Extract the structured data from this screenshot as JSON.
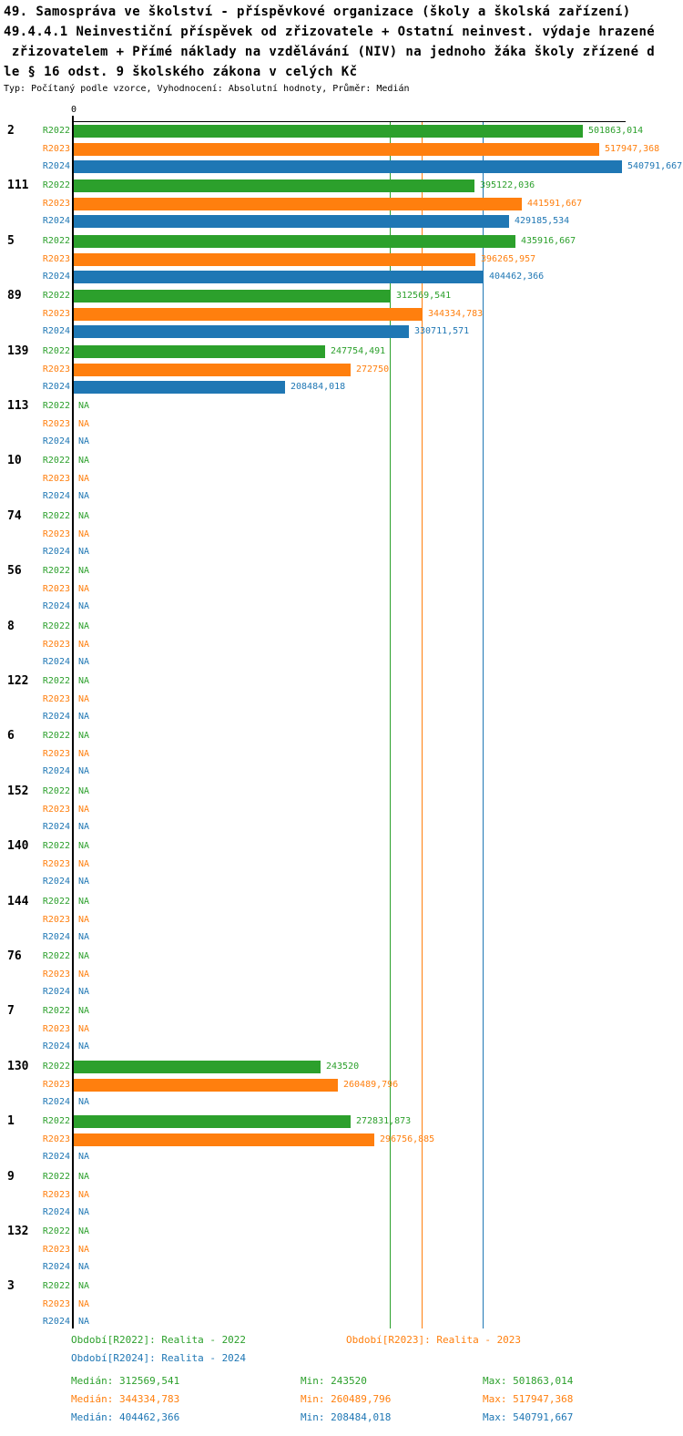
{
  "header": {
    "title_lines": [
      "49. Samospráva ve školství - příspěvkové organizace (školy a školská zařízení)",
      "49.4.4.1 Neinvestiční příspěvek od zřizovatele + Ostatní neinvest. výdaje hrazené",
      " zřizovatelem + Přímé náklady na vzdělávání (NIV) na jednoho žáka školy zřízené d",
      "le § 16 odst. 9 školského zákona v celých Kč"
    ],
    "subtitle": "Typ: Počítaný podle vzorce, Vyhodnocení: Absolutní hodnoty, Průměr: Medián"
  },
  "chart_data": {
    "type": "bar",
    "orientation": "horizontal",
    "title": "49.4.4.1 Neinvestiční příspěvek od zřizovatele + Ostatní neinvest. výdaje hrazené zřizovatelem + Přímé náklady na vzdělávání (NIV) na jednoho žáka školy zřízené dle § 16 odst. 9 školského zákona v celých Kč",
    "x_axis": {
      "min": 0,
      "max_visible": 545000,
      "unit": "Kč",
      "tick_labels": [
        "0"
      ]
    },
    "series_labels": [
      "R2022",
      "R2023",
      "R2024"
    ],
    "series_colors": [
      "#2ca02c",
      "#ff7f0e",
      "#1f77b4"
    ],
    "medians": [
      312569.541,
      344334.783,
      404462.366
    ],
    "mins": [
      243520,
      260489.796,
      208484.018
    ],
    "maxs": [
      501863.014,
      517947.368,
      540791.667
    ],
    "na_label": "NA",
    "groups": [
      {
        "label": "2",
        "values": [
          501863.014,
          517947.368,
          540791.667
        ],
        "display": [
          "501863,014",
          "517947,368",
          "540791,667"
        ]
      },
      {
        "label": "111",
        "values": [
          395122.036,
          441591.667,
          429185.534
        ],
        "display": [
          "395122,036",
          "441591,667",
          "429185,534"
        ]
      },
      {
        "label": "5",
        "values": [
          435916.667,
          396265.957,
          404462.366
        ],
        "display": [
          "435916,667",
          "396265,957",
          "404462,366"
        ]
      },
      {
        "label": "89",
        "values": [
          312569.541,
          344334.783,
          330711.571
        ],
        "display": [
          "312569,541",
          "344334,783",
          "330711,571"
        ]
      },
      {
        "label": "139",
        "values": [
          247754.491,
          272750,
          208484.018
        ],
        "display": [
          "247754,491",
          "272750",
          "208484,018"
        ]
      },
      {
        "label": "113",
        "values": [
          null,
          null,
          null
        ],
        "display": [
          "NA",
          "NA",
          "NA"
        ]
      },
      {
        "label": "10",
        "values": [
          null,
          null,
          null
        ],
        "display": [
          "NA",
          "NA",
          "NA"
        ]
      },
      {
        "label": "74",
        "values": [
          null,
          null,
          null
        ],
        "display": [
          "NA",
          "NA",
          "NA"
        ]
      },
      {
        "label": "56",
        "values": [
          null,
          null,
          null
        ],
        "display": [
          "NA",
          "NA",
          "NA"
        ]
      },
      {
        "label": "8",
        "values": [
          null,
          null,
          null
        ],
        "display": [
          "NA",
          "NA",
          "NA"
        ]
      },
      {
        "label": "122",
        "values": [
          null,
          null,
          null
        ],
        "display": [
          "NA",
          "NA",
          "NA"
        ]
      },
      {
        "label": "6",
        "values": [
          null,
          null,
          null
        ],
        "display": [
          "NA",
          "NA",
          "NA"
        ]
      },
      {
        "label": "152",
        "values": [
          null,
          null,
          null
        ],
        "display": [
          "NA",
          "NA",
          "NA"
        ]
      },
      {
        "label": "140",
        "values": [
          null,
          null,
          null
        ],
        "display": [
          "NA",
          "NA",
          "NA"
        ]
      },
      {
        "label": "144",
        "values": [
          null,
          null,
          null
        ],
        "display": [
          "NA",
          "NA",
          "NA"
        ]
      },
      {
        "label": "76",
        "values": [
          null,
          null,
          null
        ],
        "display": [
          "NA",
          "NA",
          "NA"
        ]
      },
      {
        "label": "7",
        "values": [
          null,
          null,
          null
        ],
        "display": [
          "NA",
          "NA",
          "NA"
        ]
      },
      {
        "label": "130",
        "values": [
          243520,
          260489.796,
          null
        ],
        "display": [
          "243520",
          "260489,796",
          "NA"
        ]
      },
      {
        "label": "1",
        "values": [
          272831.873,
          296756.885,
          null
        ],
        "display": [
          "272831,873",
          "296756,885",
          "NA"
        ]
      },
      {
        "label": "9",
        "values": [
          null,
          null,
          null
        ],
        "display": [
          "NA",
          "NA",
          "NA"
        ]
      },
      {
        "label": "132",
        "values": [
          null,
          null,
          null
        ],
        "display": [
          "NA",
          "NA",
          "NA"
        ]
      },
      {
        "label": "3",
        "values": [
          null,
          null,
          null
        ],
        "display": [
          "NA",
          "NA",
          "NA"
        ]
      }
    ]
  },
  "legend": {
    "period_r2022": "Období[R2022]: Realita - 2022",
    "period_r2023": "Období[R2023]: Realita - 2023",
    "period_r2024": "Období[R2024]: Realita - 2024",
    "stats": [
      {
        "median": "Medián: 312569,541",
        "min": "Min: 243520",
        "max": "Max: 501863,014"
      },
      {
        "median": "Medián: 344334,783",
        "min": "Min: 260489,796",
        "max": "Max: 517947,368"
      },
      {
        "median": "Medián: 404462,366",
        "min": "Min: 208484,018",
        "max": "Max: 540791,667"
      }
    ]
  },
  "colors": {
    "r2022_green": "#2ca02c",
    "r2023_orange": "#ff7f0e",
    "r2024_blue": "#1f77b4",
    "axis_black": "#000000"
  }
}
